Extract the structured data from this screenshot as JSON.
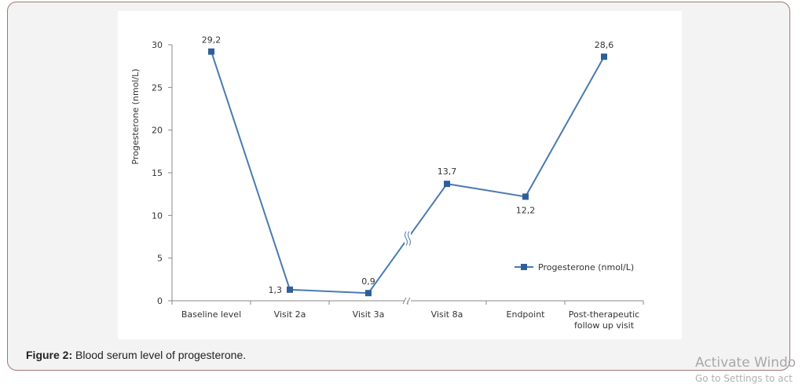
{
  "figure": {
    "caption_label": "Figure 2:",
    "caption_text": " Blood serum level of progesterone."
  },
  "watermark": {
    "title": "Activate Windo",
    "subtitle": "Go to Settings to act"
  },
  "colors": {
    "series": "#4a7ab0",
    "marker": "#2f5f98",
    "axis": "#888888",
    "border": "#a0776f"
  },
  "chart_data": {
    "type": "line",
    "title": "",
    "xlabel": "",
    "ylabel": "Progesterone (nmol/L)",
    "ylim": [
      0,
      30
    ],
    "yticks": [
      0,
      5,
      10,
      15,
      20,
      25,
      30
    ],
    "categories": [
      "Baseline level",
      "Visit 2a",
      "Visit 3a",
      "Visit 8a",
      "Endpoint",
      "Post-therapeutic follow up visit"
    ],
    "category_lines": [
      [
        "Baseline level"
      ],
      [
        "Visit 2a"
      ],
      [
        "Visit 3a"
      ],
      [
        "Visit 8a"
      ],
      [
        "Endpoint"
      ],
      [
        "Post-therapeutic",
        "follow up visit"
      ]
    ],
    "series": [
      {
        "name": "Progesterone (nmol/L)",
        "values": [
          29.2,
          1.3,
          0.9,
          13.7,
          12.2,
          28.6
        ],
        "labels": [
          "29,2",
          "1,3",
          "0,9",
          "13,7",
          "12,2",
          "28,6"
        ]
      }
    ],
    "axis_break": {
      "between": [
        "Visit 3a",
        "Visit 8a"
      ]
    },
    "grid": false,
    "legend": {
      "position": "right",
      "entries": [
        "Progesterone (nmol/L)"
      ]
    }
  }
}
